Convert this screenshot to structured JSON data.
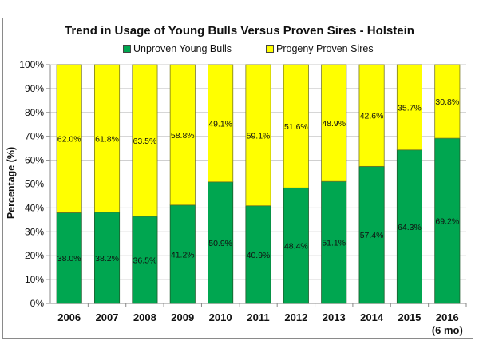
{
  "chart_data": {
    "type": "bar",
    "stacked": true,
    "percent_stacked": true,
    "title": "Trend in Usage of Young Bulls Versus Proven Sires - Holstein",
    "xlabel": "",
    "ylabel": "Percentage (%)",
    "ylim": [
      0,
      100
    ],
    "yticks": [
      "0%",
      "10%",
      "20%",
      "30%",
      "40%",
      "50%",
      "60%",
      "70%",
      "80%",
      "90%",
      "100%"
    ],
    "grid": true,
    "legend_position": "top-center",
    "categories": [
      "2006",
      "2007",
      "2008",
      "2009",
      "2010",
      "2011",
      "2012",
      "2013",
      "2014",
      "2015",
      "2016"
    ],
    "category_sublabels": [
      "",
      "",
      "",
      "",
      "",
      "",
      "",
      "",
      "",
      "",
      "(6 mo)"
    ],
    "series": [
      {
        "name": "Unproven Young Bulls",
        "color": "#00a650",
        "values": [
          38.0,
          38.2,
          36.5,
          41.2,
          50.9,
          40.9,
          48.4,
          51.1,
          57.4,
          64.3,
          69.2
        ],
        "labels": [
          "38.0%",
          "38.2%",
          "36.5%",
          "41.2%",
          "50.9%",
          "40.9%",
          "48.4%",
          "51.1%",
          "57.4%",
          "64.3%",
          "69.2%"
        ]
      },
      {
        "name": "Progeny Proven Sires",
        "color": "#ffff00",
        "values": [
          62.0,
          61.8,
          63.5,
          58.8,
          49.1,
          59.1,
          51.6,
          48.9,
          42.6,
          35.7,
          30.8
        ],
        "labels": [
          "62.0%",
          "61.8%",
          "63.5%",
          "58.8%",
          "49.1%",
          "59.1%",
          "51.6%",
          "48.9%",
          "42.6%",
          "35.7%",
          "30.8%"
        ]
      }
    ]
  }
}
